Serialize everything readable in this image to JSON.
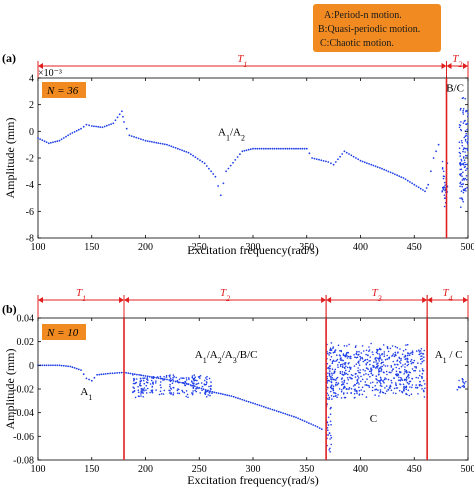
{
  "legend_box": {
    "lines": [
      "A:Period-n motion.",
      "B:Quasi-periodic motion.",
      "C:Chaotic motion."
    ],
    "color": "#f08a21"
  },
  "colors": {
    "data": "#1f3fe8",
    "marker": "#e02020",
    "nbox": "#f08a21"
  },
  "chart_data": [
    {
      "type": "scatter",
      "panel_label": "(a)",
      "n_label": "N = 36",
      "xlabel": "Excitation frequency(rad/s)",
      "ylabel": "Amplitude (mm)",
      "y_exponent": "×10⁻³",
      "xlim": [
        100,
        500
      ],
      "ylim": [
        -8,
        4
      ],
      "xticks": [
        "100",
        "150",
        "200",
        "250",
        "300",
        "350",
        "400",
        "450",
        "500"
      ],
      "yticks": [
        "4",
        "2",
        "0",
        "-2",
        "-4",
        "-6",
        "-8"
      ],
      "intervals": [
        {
          "label": "T1",
          "from": 100,
          "to": 480
        },
        {
          "label": "T2",
          "from": 480,
          "to": 500
        }
      ],
      "boundaries": [
        480
      ],
      "annotations": [
        {
          "text": "A1/A2",
          "x": 280,
          "y": -0.3
        },
        {
          "text": "B/C",
          "x": 488,
          "y": 3.0
        }
      ],
      "series": [
        {
          "points": [
            [
              100,
              -0.5
            ],
            [
              110,
              -0.9
            ],
            [
              120,
              -0.7
            ],
            [
              130,
              -0.2
            ],
            [
              140,
              0.2
            ],
            [
              145,
              0.5
            ],
            [
              150,
              0.4
            ],
            [
              160,
              0.3
            ],
            [
              170,
              0.6
            ],
            [
              178,
              1.5
            ],
            [
              180,
              0.7
            ],
            [
              185,
              -0.3
            ],
            [
              200,
              -0.7
            ],
            [
              220,
              -1.0
            ],
            [
              240,
              -1.6
            ],
            [
              255,
              -2.4
            ],
            [
              265,
              -3.4
            ],
            [
              270,
              -4.8
            ],
            [
              275,
              -3.0
            ],
            [
              290,
              -1.5
            ],
            [
              300,
              -1.3
            ],
            [
              320,
              -1.3
            ],
            [
              350,
              -1.3
            ],
            [
              355,
              -2.0
            ],
            [
              370,
              -2.3
            ],
            [
              375,
              -2.5
            ],
            [
              385,
              -1.5
            ],
            [
              400,
              -2.2
            ],
            [
              420,
              -2.8
            ],
            [
              440,
              -3.5
            ],
            [
              460,
              -4.5
            ],
            [
              463,
              -4.0
            ],
            [
              468,
              -2.0
            ],
            [
              475,
              -0.5
            ]
          ]
        },
        {
          "bands": [
            {
              "x0": 476,
              "x1": 481,
              "ymin": -6.0,
              "ymax": -2.0
            },
            {
              "x0": 492,
              "x1": 500,
              "ymin": -6.0,
              "ymax": 3.0
            }
          ]
        }
      ]
    },
    {
      "type": "scatter",
      "panel_label": "(b)",
      "n_label": "N = 10",
      "xlabel": "Excitation frequency(rad/s)",
      "ylabel": "Amplitude (mm)",
      "xlim": [
        100,
        500
      ],
      "ylim": [
        -0.08,
        0.04
      ],
      "xticks": [
        "100",
        "150",
        "200",
        "250",
        "300",
        "350",
        "400",
        "450",
        "500"
      ],
      "yticks": [
        "0.04",
        "0.02",
        "0",
        "-0.02",
        "-0.04",
        "-0.06",
        "-0.08"
      ],
      "intervals": [
        {
          "label": "T1",
          "from": 100,
          "to": 180
        },
        {
          "label": "T2",
          "from": 180,
          "to": 368
        },
        {
          "label": "T3",
          "from": 368,
          "to": 462
        },
        {
          "label": "T4",
          "from": 462,
          "to": 500
        }
      ],
      "boundaries": [
        180,
        368,
        462
      ],
      "annotations": [
        {
          "text": "A1",
          "x": 145,
          "y": -0.025
        },
        {
          "text": "A1/A2/A3/B/C",
          "x": 275,
          "y": 0.006
        },
        {
          "text": "C",
          "x": 412,
          "y": -0.048
        },
        {
          "text": "A1 / C",
          "x": 482,
          "y": 0.006
        }
      ],
      "series": [
        {
          "points": [
            [
              100,
              0.0
            ],
            [
              120,
              0.0
            ],
            [
              130,
              -0.001
            ],
            [
              140,
              -0.004
            ],
            [
              145,
              -0.011
            ],
            [
              150,
              -0.013
            ],
            [
              155,
              -0.008
            ],
            [
              165,
              -0.007
            ],
            [
              180,
              -0.006
            ],
            [
              200,
              -0.009
            ],
            [
              220,
              -0.012
            ],
            [
              240,
              -0.016
            ],
            [
              260,
              -0.022
            ],
            [
              280,
              -0.026
            ],
            [
              300,
              -0.032
            ],
            [
              320,
              -0.038
            ],
            [
              340,
              -0.044
            ],
            [
              360,
              -0.052
            ],
            [
              366,
              -0.055
            ]
          ]
        },
        {
          "bands": [
            {
              "x0": 188,
              "x1": 262,
              "ymin": -0.028,
              "ymax": -0.006
            },
            {
              "x0": 371,
              "x1": 460,
              "ymin": -0.03,
              "ymax": 0.02
            },
            {
              "x0": 368,
              "x1": 373,
              "ymin": -0.078,
              "ymax": 0.025
            },
            {
              "x0": 490,
              "x1": 498,
              "ymin": -0.022,
              "ymax": -0.008
            }
          ]
        }
      ]
    }
  ]
}
